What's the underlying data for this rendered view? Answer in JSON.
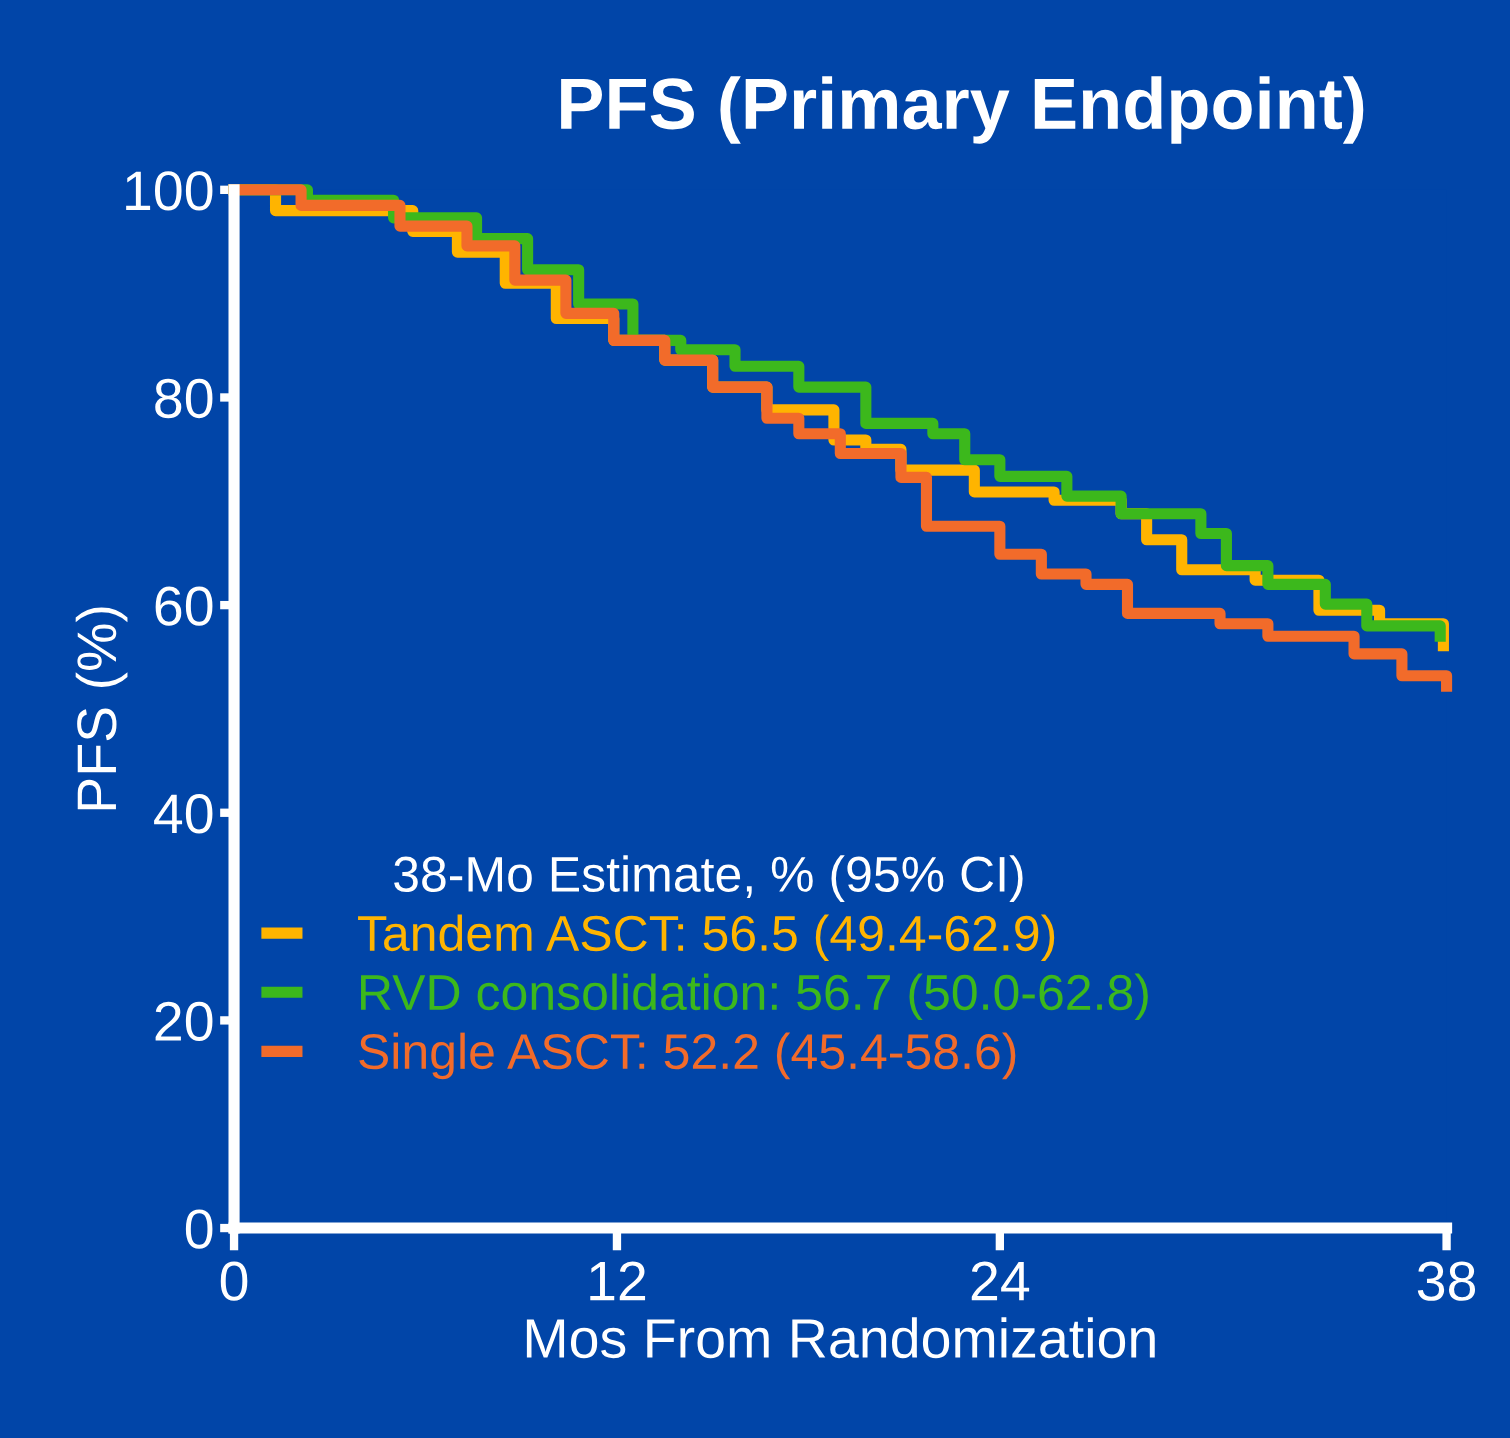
{
  "chart_data": {
    "type": "step",
    "title": "PFS (Primary Endpoint)",
    "xlabel": "Mos From Randomization",
    "ylabel": "PFS (%)",
    "legend_title": "38-Mo Estimate, % (95% CI)",
    "xlim": [
      0,
      38
    ],
    "xticks": [
      0,
      12,
      24,
      38
    ],
    "ylim": [
      0,
      100
    ],
    "yticks": [
      0,
      20,
      40,
      60,
      80,
      100
    ],
    "grid": false,
    "legend": "bottom left",
    "marker": "none",
    "line_style": "solid",
    "series": [
      {
        "name": "Tandem ASCT: 56.5 (49.4-62.9)",
        "color": "#ffb400",
        "x": [
          0,
          1.3,
          5.6,
          7.0,
          8.5,
          10.1,
          11.9,
          13.5,
          15,
          16.7,
          18.8,
          19.8,
          20.9,
          23.2,
          25.7,
          27.8,
          28.6,
          29.7,
          32,
          34,
          35.9,
          37.9
        ],
        "values": [
          100,
          98,
          96,
          94,
          91,
          87.6,
          85.5,
          83.6,
          81,
          78.8,
          75.9,
          75,
          73,
          70.9,
          70.1,
          68.8,
          66.3,
          63.4,
          62.4,
          59.5,
          58.2,
          56.1
        ]
      },
      {
        "name": "RVD consolidation: 56.7 (50.0-62.8)",
        "color": "#3cb81c",
        "x": [
          0,
          2.3,
          5.0,
          7.6,
          9.2,
          10.8,
          12.5,
          14,
          15.7,
          17.7,
          19.8,
          21.9,
          22.9,
          24,
          26.1,
          27.8,
          30.3,
          31.1,
          32.4,
          34.2,
          35.5,
          37.8
        ],
        "values": [
          100,
          99,
          97.3,
          95.3,
          92.3,
          89,
          85.5,
          84.6,
          83,
          81,
          77.5,
          76.5,
          74,
          72.4,
          70.5,
          68.8,
          66.9,
          63.8,
          62,
          60.1,
          58,
          57
        ]
      },
      {
        "name": "Single ASCT: 52.2 (45.4-58.6)",
        "color": "#f26b2a",
        "x": [
          0,
          2.1,
          5.2,
          7.3,
          8.8,
          10.4,
          11.9,
          13.5,
          15,
          16.7,
          17.7,
          19,
          20.9,
          21.7,
          24,
          25.3,
          26.7,
          28,
          30.9,
          32.4,
          35.1,
          36.6,
          38
        ],
        "values": [
          100,
          98.5,
          96.5,
          94.6,
          91.3,
          88.1,
          85.5,
          83.6,
          81,
          78,
          76.5,
          74.6,
          72.3,
          67.6,
          64.9,
          63,
          62,
          59.2,
          58.2,
          57,
          55.3,
          53.2,
          52.2
        ]
      }
    ]
  }
}
